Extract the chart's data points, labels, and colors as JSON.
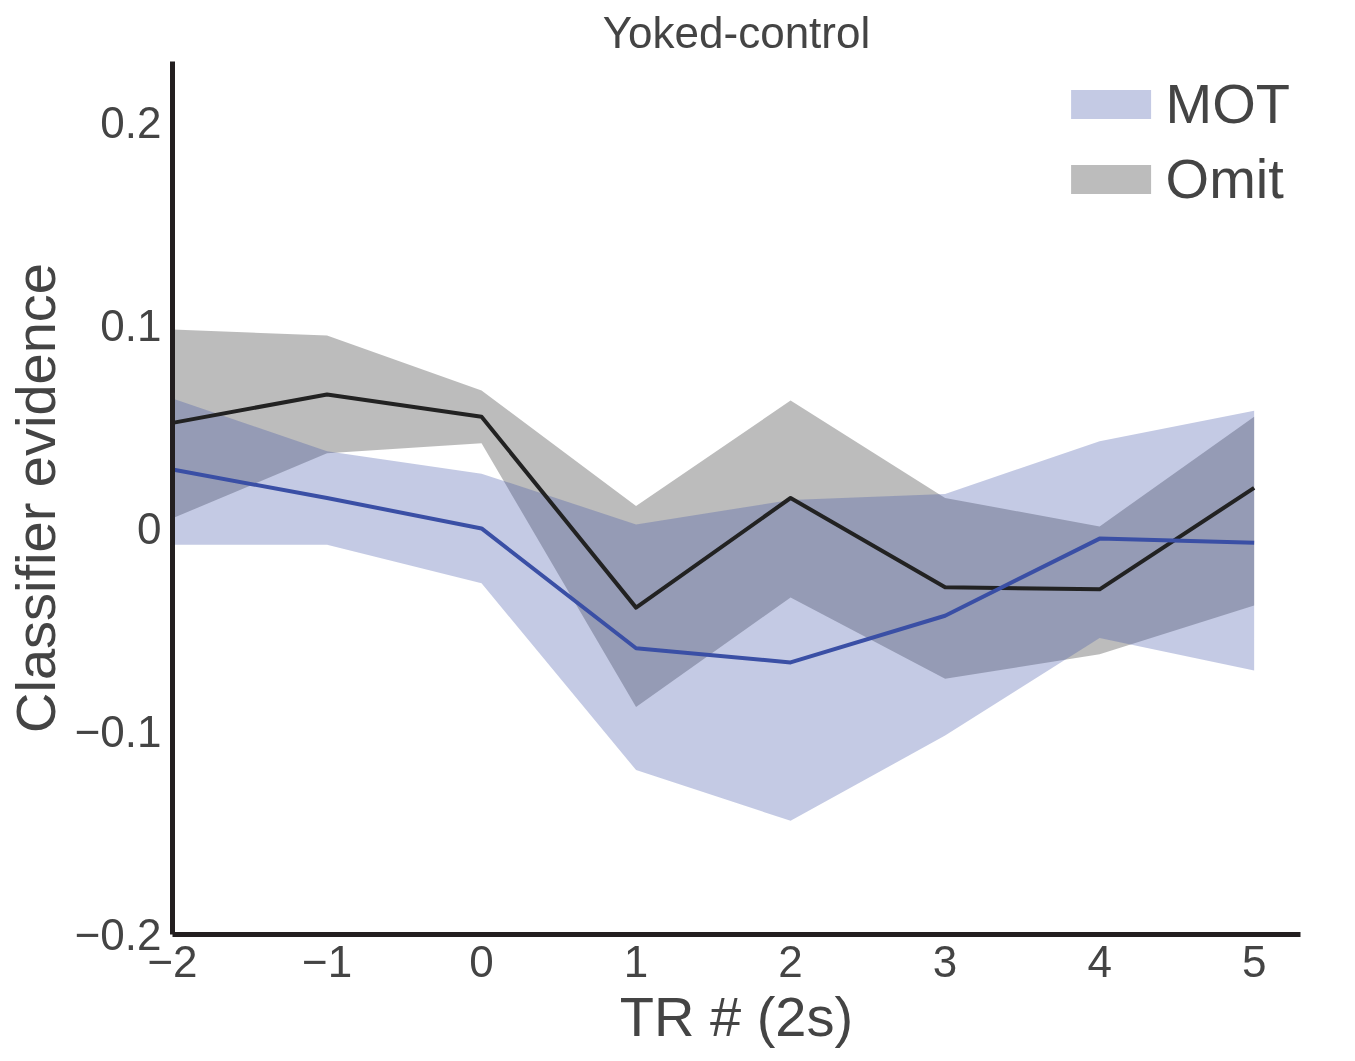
{
  "chart_data": {
    "type": "line",
    "title": "Yoked-control",
    "xlabel": "TR # (2s)",
    "ylabel": "Classifier evidence",
    "x": [
      -2,
      -1,
      0,
      1,
      2,
      3,
      4,
      5
    ],
    "xlim": [
      -2,
      5.3
    ],
    "ylim": [
      -0.2,
      0.23
    ],
    "xticks": [
      -2,
      -1,
      0,
      1,
      2,
      3,
      4,
      5
    ],
    "yticks": [
      {
        "value": -0.2,
        "label": "−0.2"
      },
      {
        "value": -0.1,
        "label": "−0.1"
      },
      0,
      0.1,
      0.2
    ],
    "grid": false,
    "legend": "top right",
    "series": [
      {
        "name": "Omit",
        "color": "#222222",
        "values": [
          0.052,
          0.066,
          0.055,
          -0.039,
          0.015,
          -0.029,
          -0.03,
          0.02
        ],
        "lower": [
          0.005,
          0.037,
          0.042,
          -0.088,
          -0.034,
          -0.074,
          -0.062,
          -0.038
        ],
        "upper": [
          0.098,
          0.095,
          0.068,
          0.011,
          0.063,
          0.015,
          0.001,
          0.055
        ]
      },
      {
        "name": "MOT",
        "color": "#3a4fa5",
        "values": [
          0.029,
          0.015,
          0,
          -0.059,
          -0.066,
          -0.043,
          -0.005,
          -0.007
        ],
        "lower": [
          -0.008,
          -0.008,
          -0.027,
          -0.119,
          -0.144,
          -0.102,
          -0.054,
          -0.07
        ],
        "upper": [
          0.064,
          0.038,
          0.027,
          0.002,
          0.014,
          0.017,
          0.043,
          0.058
        ]
      }
    ]
  }
}
